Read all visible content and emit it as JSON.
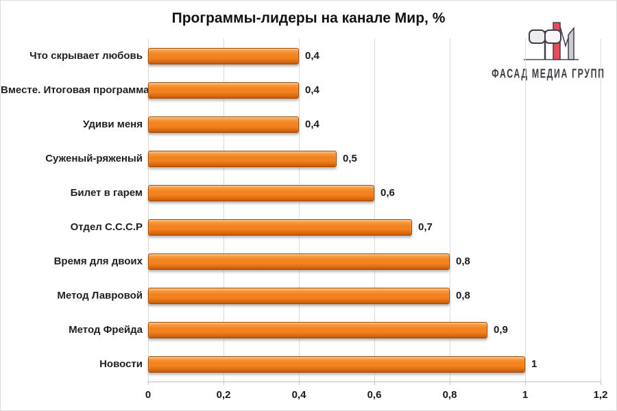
{
  "title": "Программы-лидеры на канале Мир, %",
  "logo": {
    "text": "ФАСАД МЕДИА ГРУПП",
    "red": "#e54d5e",
    "gray": "#c9ccd1",
    "light_fill": "#ededf0",
    "outline": "#3d3d46"
  },
  "chart_data": {
    "type": "bar",
    "orientation": "horizontal",
    "title": "Программы-лидеры на канале Мир, %",
    "categories": [
      "Что скрывает любовь",
      "Вместе. Итоговая программа",
      "Удиви меня",
      "Суженый-ряженый",
      "Билет в гарем",
      "Отдел С.С.С.Р",
      "Время для двоих",
      "Метод Лавровой",
      "Метод Фрейда",
      "Новости"
    ],
    "values": [
      0.4,
      0.4,
      0.4,
      0.5,
      0.6,
      0.7,
      0.8,
      0.8,
      0.9,
      1
    ],
    "value_labels": [
      "0,4",
      "0,4",
      "0,4",
      "0,5",
      "0,6",
      "0,7",
      "0,8",
      "0,8",
      "0,9",
      "1"
    ],
    "xlabel": "",
    "ylabel": "",
    "xlim": [
      0,
      1.2
    ],
    "x_ticks": [
      0,
      0.2,
      0.4,
      0.6,
      0.8,
      1,
      1.2
    ],
    "x_tick_labels": [
      "0",
      "0,2",
      "0,4",
      "0,6",
      "0,8",
      "1",
      "1,2"
    ],
    "grid": true,
    "legend": false,
    "bar_color": "#f2831f",
    "bar_color_light": "#fba64f",
    "bar_color_dark": "#c25a0b",
    "bar_border_color": "#a04b05",
    "grid_color": "#d9d9d9"
  }
}
